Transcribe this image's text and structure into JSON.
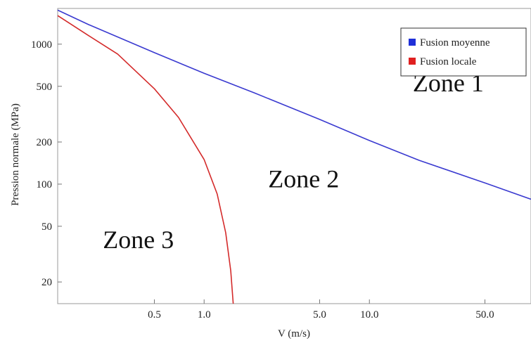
{
  "chart_data": {
    "type": "line",
    "xscale": "log",
    "yscale": "log",
    "xlabel": "V (m/s)",
    "ylabel": "Pression normale (MPa)",
    "xlim": [
      0.13,
      95
    ],
    "ylim": [
      14,
      1800
    ],
    "xticks": [
      {
        "value": 0.5,
        "label": "0.5"
      },
      {
        "value": 1.0,
        "label": "1.0"
      },
      {
        "value": 5.0,
        "label": "5.0"
      },
      {
        "value": 10.0,
        "label": "10.0"
      },
      {
        "value": 50.0,
        "label": "50.0"
      }
    ],
    "yticks": [
      {
        "value": 20,
        "label": "20"
      },
      {
        "value": 50,
        "label": "50"
      },
      {
        "value": 100,
        "label": "100"
      },
      {
        "value": 200,
        "label": "200"
      },
      {
        "value": 500,
        "label": "500"
      },
      {
        "value": 1000,
        "label": "1000"
      }
    ],
    "legend_position": "top-right",
    "series": [
      {
        "name": "Fusion moyenne",
        "color": "#3a3ad0",
        "points": [
          [
            0.13,
            1750
          ],
          [
            0.2,
            1380
          ],
          [
            0.5,
            870
          ],
          [
            1.0,
            620
          ],
          [
            2.0,
            450
          ],
          [
            5.0,
            290
          ],
          [
            10.0,
            205
          ],
          [
            20.0,
            148
          ],
          [
            50.0,
            102
          ],
          [
            95.0,
            78
          ]
        ]
      },
      {
        "name": "Fusion locale",
        "color": "#d42a2a",
        "points": [
          [
            0.13,
            1600
          ],
          [
            0.2,
            1150
          ],
          [
            0.3,
            850
          ],
          [
            0.5,
            480
          ],
          [
            0.7,
            300
          ],
          [
            1.0,
            150
          ],
          [
            1.2,
            85
          ],
          [
            1.35,
            45
          ],
          [
            1.45,
            24
          ],
          [
            1.5,
            14
          ]
        ]
      }
    ],
    "annotations": [
      {
        "text": "Zone 1",
        "x": 30,
        "y": 460
      },
      {
        "text": "Zone 2",
        "x": 4,
        "y": 95
      },
      {
        "text": "Zone 3",
        "x": 0.4,
        "y": 35
      }
    ]
  }
}
